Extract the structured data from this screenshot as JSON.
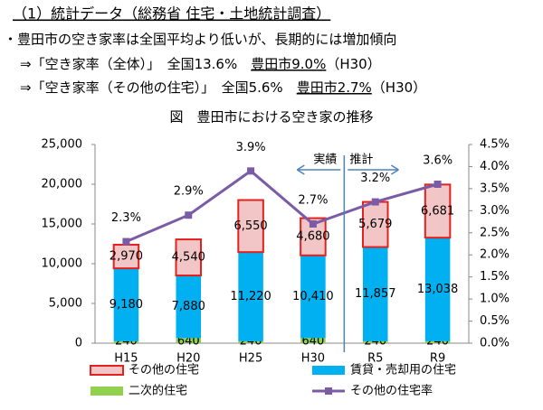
{
  "header": {
    "title": "（1）統計データ（総務省 住宅・土地統計調査）",
    "bullet": "・豊田市の空き家率は全国平均より低いが、長期的には増加傾向",
    "notes": [
      [
        "⇒「空き家率（全体）」　全国13.6%　",
        "豊田市9.0%",
        "（H30）"
      ],
      [
        "⇒「空き家率（その他の住宅）」　全国5.6%　",
        "豊田市2.7%",
        "（H30）"
      ]
    ]
  },
  "chart_data": {
    "type": "bar",
    "title": "図　豊田市における空き家の推移",
    "categories": [
      "H15",
      "H20",
      "H25",
      "H30",
      "R5",
      "R9"
    ],
    "series": [
      {
        "name": "その他の住宅",
        "color": "#f2c6c6",
        "edge": "#e3211f",
        "values": [
          2970,
          4540,
          6550,
          4680,
          5679,
          6681
        ],
        "value_labels": [
          "2,970",
          "4,540",
          "6,550",
          "4,680",
          "5,679",
          "6,681"
        ]
      },
      {
        "name": "賃貸・売却用の住宅",
        "color": "#00b0f0",
        "values": [
          9180,
          7880,
          11220,
          10410,
          11857,
          13038
        ],
        "value_labels": [
          "9,180",
          "7,880",
          "11,220",
          "10,410",
          "11,857",
          "13,038"
        ]
      },
      {
        "name": "二次的住宅",
        "color": "#92d050",
        "values": [
          240,
          640,
          240,
          640,
          240,
          240
        ]
      },
      {
        "name": "その他の住宅率",
        "color": "#7a5ba6",
        "type": "line",
        "axis": "y2",
        "values": [
          2.3,
          2.9,
          3.9,
          2.7,
          3.2,
          3.6
        ],
        "value_labels": [
          "2.3%",
          "2.9%",
          "3.9%",
          "2.7%",
          "3.2%",
          "3.6%"
        ]
      }
    ],
    "ylim": [
      0,
      25000
    ],
    "yticks": [
      0,
      {
        "value": 5000,
        "label": "5,000"
      },
      {
        "value": 10000,
        "label": "10,000"
      },
      {
        "value": 15000,
        "label": "15,000"
      },
      {
        "value": 20000,
        "label": "20,000"
      },
      {
        "value": 25000,
        "label": "25,000"
      }
    ],
    "y2lim": [
      0,
      4.5
    ],
    "y2ticks": [
      {
        "value": 0,
        "label": "0.0%"
      },
      {
        "value": 0.5,
        "label": "0.5%"
      },
      {
        "value": 1,
        "label": "1.0%"
      },
      {
        "value": 1.5,
        "label": "1.5%"
      },
      {
        "value": 2,
        "label": "2.0%"
      },
      {
        "value": 2.5,
        "label": "2.5%"
      },
      {
        "value": 3,
        "label": "3.0%"
      },
      {
        "value": 3.5,
        "label": "3.5%"
      },
      {
        "value": 4,
        "label": "4.0%"
      },
      {
        "value": 4.5,
        "label": "4.5%"
      }
    ],
    "annotations": [
      "実績",
      "推計"
    ]
  }
}
